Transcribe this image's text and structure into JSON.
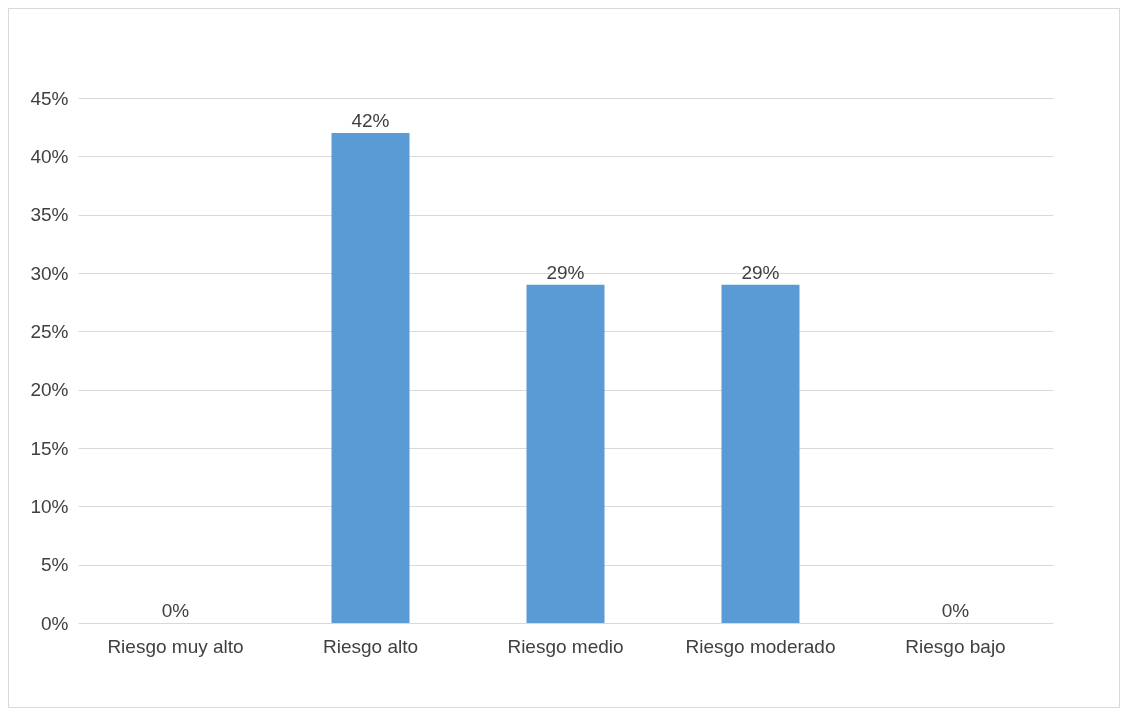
{
  "chart_data": {
    "type": "bar",
    "categories": [
      "Riesgo muy alto",
      "Riesgo alto",
      "Riesgo medio",
      "Riesgo moderado",
      "Riesgo bajo"
    ],
    "values": [
      0,
      42,
      29,
      29,
      0
    ],
    "value_labels": [
      "0%",
      "42%",
      "29%",
      "29%",
      "0%"
    ],
    "color": "#5b9bd5",
    "ylim": [
      0,
      45
    ],
    "yticks": [
      {
        "value": 0,
        "label": "0%"
      },
      {
        "value": 5,
        "label": "5%"
      },
      {
        "value": 10,
        "label": "10%"
      },
      {
        "value": 15,
        "label": "15%"
      },
      {
        "value": 20,
        "label": "20%"
      },
      {
        "value": 25,
        "label": "25%"
      },
      {
        "value": 30,
        "label": "30%"
      },
      {
        "value": 35,
        "label": "35%"
      },
      {
        "value": 40,
        "label": "40%"
      },
      {
        "value": 45,
        "label": "45%"
      }
    ],
    "grid": true
  }
}
